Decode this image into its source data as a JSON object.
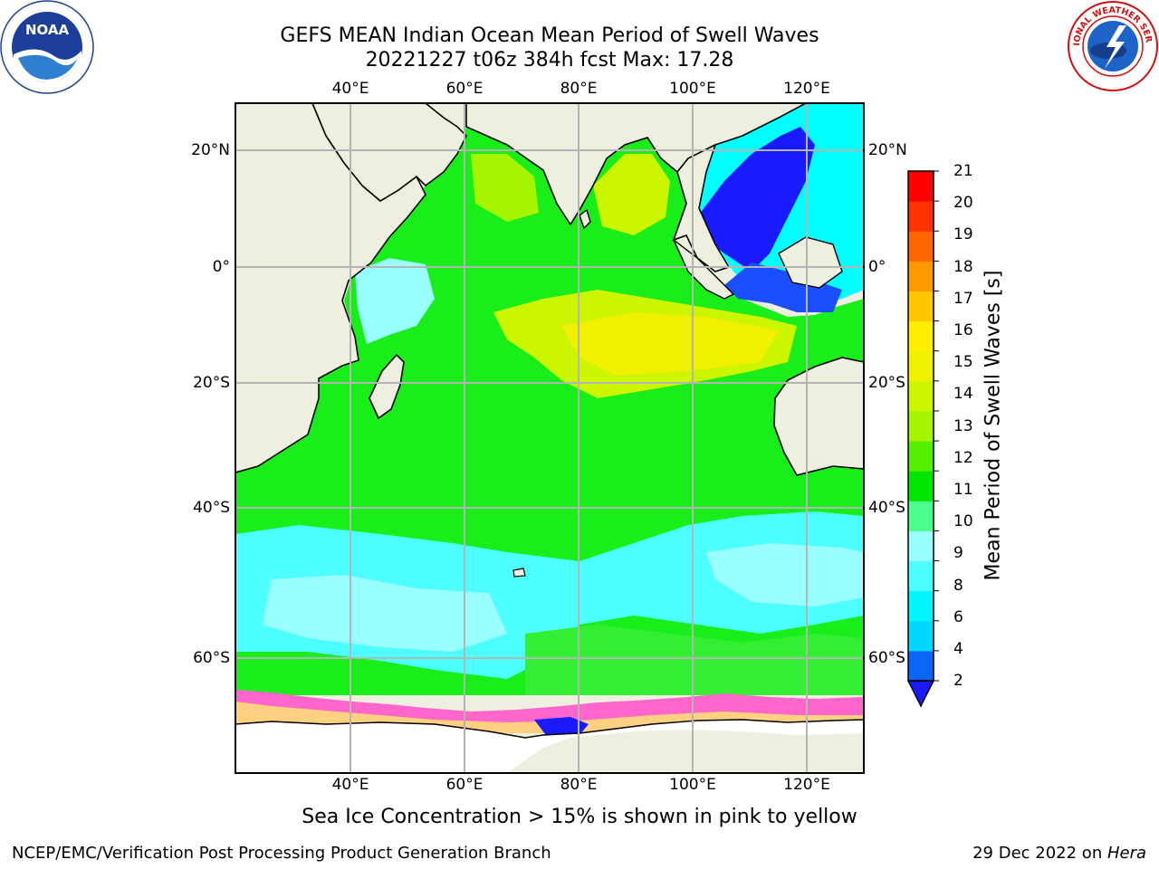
{
  "header": {
    "title_line1": "GEFS MEAN Indian Ocean Mean Period of Swell Waves",
    "title_line2": "20221227 t06z 384h fcst   Max: 17.28"
  },
  "logos": {
    "left": "NOAA",
    "right": "NATIONAL WEATHER SERVICE"
  },
  "map": {
    "longitude_ticks": [
      "40°E",
      "60°E",
      "80°E",
      "100°E",
      "120°E"
    ],
    "latitude_ticks": [
      "20°N",
      "0°",
      "20°S",
      "40°S",
      "60°S"
    ],
    "extent": {
      "lon_min": 20,
      "lon_max": 130,
      "lat_min": -75,
      "lat_max": 28
    },
    "ocean_color": "#1aee1a",
    "land_color": "#efefdf",
    "ice_color": "#ffffff"
  },
  "colorbar": {
    "label": "Mean Period of Swell Waves [s]",
    "ticks": [
      "2",
      "4",
      "6",
      "8",
      "9",
      "10",
      "11",
      "12",
      "13",
      "14",
      "15",
      "16",
      "17",
      "18",
      "19",
      "20",
      "21"
    ],
    "colors": [
      "#0a66f5",
      "#00d8ff",
      "#00f5ff",
      "#4dffff",
      "#99ffff",
      "#4dff8c",
      "#00e600",
      "#55f000",
      "#a6f500",
      "#ccf500",
      "#f0f000",
      "#ffee00",
      "#ffc800",
      "#ff9900",
      "#ff6600",
      "#ff3300",
      "#ff0000"
    ],
    "under_color": "#1a1aff"
  },
  "footnote": "Sea Ice Concentration > 15% is shown in pink to yellow",
  "credits": {
    "left": "NCEP/EMC/Verification Post Processing Product Generation Branch",
    "right_prefix": "29 Dec 2022 on ",
    "right_system": "Hera"
  }
}
